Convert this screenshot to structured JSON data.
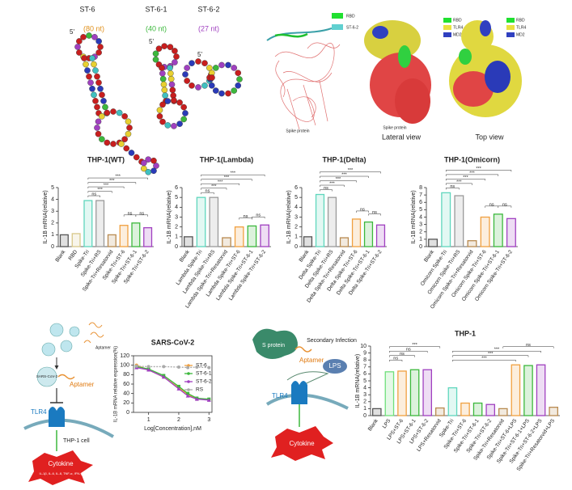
{
  "chart_data": [
    {
      "type": "bar",
      "title": "THP-1(WT)",
      "y_label": "IL-1B mRNA(relative)",
      "categories": [
        "Blank",
        "RBD",
        "Spike-Tri",
        "Spike-Tri+RS",
        "Spike-Tri+Resatorvid",
        "Spike-Tri+ST-6",
        "Spike-Tri+ST-6-1",
        "Spike-Tri+ST-6-2"
      ],
      "values": [
        1.0,
        1.1,
        3.9,
        3.9,
        1.0,
        1.8,
        2.0,
        1.6
      ],
      "colors": [
        "#555555",
        "#d8c88a",
        "#5fd6bd",
        "#9a9a9a",
        "#b88a50",
        "#f0a040",
        "#3cb83c",
        "#a040c0"
      ],
      "ylim": [
        0,
        5
      ],
      "yticks": [
        0,
        1,
        2,
        3,
        4,
        5
      ],
      "annotations": [
        "ns",
        "***",
        "***",
        "***",
        "***",
        "ns",
        "ns"
      ]
    },
    {
      "type": "bar",
      "title": "THP-1(Lambda)",
      "y_label": "IL-1B mRNA(relative)",
      "categories": [
        "Blank",
        "Lambda Spike-Tri",
        "Lambda Spike-Tri+RS",
        "Lambda Spike-Tri+Resatorvid",
        "Lambda Spike-Tri+ST-6",
        "Lambda Spike-Tri+ST-6-1",
        "Lambda Spike-Tri+ST-6-2"
      ],
      "values": [
        1.0,
        5.0,
        5.0,
        0.9,
        2.0,
        2.1,
        2.2
      ],
      "colors": [
        "#555555",
        "#5fd6bd",
        "#9a9a9a",
        "#b88a50",
        "#f0a040",
        "#3cb83c",
        "#a040c0"
      ],
      "ylim": [
        0,
        6
      ],
      "yticks": [
        0,
        1,
        2,
        3,
        4,
        5,
        6
      ],
      "annotations": [
        "ns",
        "***",
        "***",
        "***",
        "***",
        "ns",
        "ns"
      ]
    },
    {
      "type": "bar",
      "title": "THP-1(Delta)",
      "y_label": "IL-1B mRNA(relative)",
      "categories": [
        "Blank",
        "Delta Spike-Tri",
        "Delta Spike-Tri+RS",
        "Delta Spike-Tri+Resatorvid",
        "Delta Spike-Tri+ST-6",
        "Delta Spike-Tri+ST-6-1",
        "Delta Spike-Tri+ST-6-2"
      ],
      "values": [
        1.0,
        5.3,
        5.0,
        0.9,
        2.8,
        2.5,
        2.2
      ],
      "colors": [
        "#555555",
        "#5fd6bd",
        "#9a9a9a",
        "#b88a50",
        "#f0a040",
        "#3cb83c",
        "#a040c0"
      ],
      "ylim": [
        0,
        6
      ],
      "yticks": [
        0,
        1,
        2,
        3,
        4,
        5,
        6
      ],
      "annotations": [
        "ns",
        "***",
        "***",
        "***",
        "***",
        "ns",
        "ns"
      ]
    },
    {
      "type": "bar",
      "title": "THP-1(Omicorn)",
      "y_label": "IL-1B mRNA(relative)",
      "categories": [
        "Blank",
        "Omicorn Spike-Tri",
        "Omicorn Spike-Tri+RS",
        "Omicorn Spike-Tri+Resatorvid",
        "Omicorn Spike-Tri+ST-6",
        "Omicorn Spike-Tri+ST-6-1",
        "Omicorn Spike-Tri+ST-6-2"
      ],
      "values": [
        1.0,
        7.3,
        6.9,
        0.8,
        4.0,
        4.4,
        3.8
      ],
      "colors": [
        "#555555",
        "#5fd6bd",
        "#9a9a9a",
        "#b88a50",
        "#f0a040",
        "#3cb83c",
        "#a040c0"
      ],
      "ylim": [
        0,
        8
      ],
      "yticks": [
        0,
        1,
        2,
        3,
        4,
        5,
        6,
        7,
        8
      ],
      "annotations": [
        "ns",
        "***",
        "***",
        "***",
        "***",
        "ns",
        "ns"
      ]
    },
    {
      "type": "line",
      "title": "SARS-CoV-2",
      "x_label": "Log[Concentration],nM",
      "y_label": "IL-1B mRNA relative expression(%)",
      "x": [
        0.6,
        1.0,
        1.5,
        2.0,
        2.3,
        2.6,
        3.0
      ],
      "series": [
        {
          "name": "ST-6",
          "color": "#f0a040",
          "values": [
            100,
            90,
            75,
            52,
            38,
            28,
            27
          ]
        },
        {
          "name": "ST-6-1",
          "color": "#3cb83c",
          "values": [
            97,
            92,
            78,
            55,
            40,
            30,
            28
          ]
        },
        {
          "name": "ST-6-2",
          "color": "#a040c0",
          "values": [
            95,
            90,
            75,
            50,
            35,
            28,
            26
          ]
        },
        {
          "name": "RS",
          "color": "#aaaaaa",
          "values": [
            98,
            97,
            97,
            96,
            95,
            96,
            95
          ]
        }
      ],
      "xlim": [
        0.5,
        3.1
      ],
      "xticks": [
        1,
        2,
        3
      ],
      "ylim": [
        0,
        120
      ],
      "yticks": [
        0,
        20,
        40,
        60,
        80,
        100,
        120
      ]
    },
    {
      "type": "bar",
      "title": "THP-1",
      "y_label": "IL-1B mRNA(relative)",
      "categories": [
        "Blank",
        "LPS",
        "LPS+ST-6",
        "LPS+ST-6-1",
        "LPS+ST-6-2",
        "LPS+Resatorvid",
        "Spike-Tri",
        "Spike-Tri+ST-6",
        "Spike-Tri+ST-6-1",
        "Spike-Tri+ST-6-2",
        "Spike-Tri+Resatorvid",
        "Spike-Tri+ST-6+LPS",
        "Spike-Tri+ST-6-1+LPS",
        "Spike-Tri+ST-6-2+LPS",
        "Spike-Tri+Resatorvid+LPS"
      ],
      "values": [
        1.0,
        6.3,
        6.4,
        6.6,
        6.6,
        1.1,
        4.0,
        1.8,
        1.8,
        1.6,
        1.0,
        7.3,
        7.2,
        7.3,
        1.2
      ],
      "colors": [
        "#555555",
        "#6fe07a",
        "#f0a040",
        "#3cb83c",
        "#a040c0",
        "#b88a50",
        "#5fd6bd",
        "#f0a040",
        "#3cb83c",
        "#a040c0",
        "#b88a50",
        "#f0a040",
        "#3cb83c",
        "#a040c0",
        "#b88a50"
      ],
      "ylim": [
        0,
        10
      ],
      "yticks": [
        0,
        1,
        2,
        3,
        4,
        5,
        6,
        7,
        8,
        9,
        10
      ],
      "annotations": [
        "ns",
        "ns",
        "ns",
        "***",
        "***",
        "***",
        "***",
        "ns"
      ]
    }
  ],
  "rna": [
    {
      "name": "ST-6",
      "length": "(80 nt)",
      "end": "5'"
    },
    {
      "name": "ST-6-1",
      "length": "(40 nt)",
      "end": "5'"
    },
    {
      "name": "ST-6-2",
      "length": "(27 nt)",
      "end": "5'"
    }
  ],
  "proteins": {
    "ribbon": {
      "legend": [
        "RBD",
        "ST-6-2"
      ],
      "caption": "Spike protein"
    },
    "lateral": {
      "legend": [
        "RBD",
        "TLR4",
        "MD2"
      ],
      "caption": "Spike protein",
      "view": "Lateral view"
    },
    "top": {
      "legend": [
        "RBD",
        "TLR4",
        "MD2"
      ],
      "view": "Top view"
    }
  },
  "diagram_left": {
    "aptamer_top": "Aptamer",
    "virus": "SARS-CoV-2",
    "aptamer": "Aptamer",
    "receptor": "TLR4",
    "cell": "THP-1 cell",
    "cytokine": "Cytokine",
    "cytokine_list": "IL-1β, IL-6, IL-8, TNF-α, IFN-γ"
  },
  "diagram_right": {
    "protein": "S protein",
    "infection": "Secondary Infection",
    "aptamer": "Aptamer",
    "lps": "LPS",
    "receptor": "TLR4",
    "cytokine": "Cytokine"
  }
}
